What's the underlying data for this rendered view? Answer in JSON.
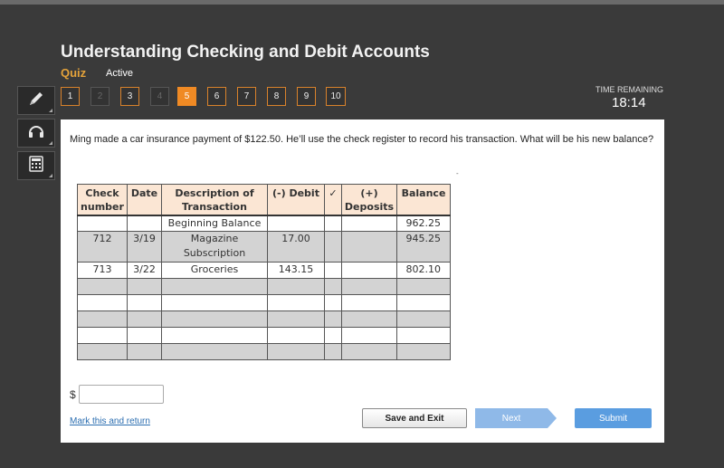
{
  "header": {
    "title": "Understanding Checking and Debit Accounts",
    "section": "Quiz",
    "status": "Active"
  },
  "tools": [
    {
      "name": "pencil-icon"
    },
    {
      "name": "headphones-icon"
    },
    {
      "name": "calculator-icon"
    }
  ],
  "question_nav": {
    "items": [
      "1",
      "2",
      "3",
      "4",
      "5",
      "6",
      "7",
      "8",
      "9",
      "10"
    ],
    "current": "5",
    "disabled": [
      "2",
      "4"
    ]
  },
  "timer": {
    "label": "TIME REMAINING",
    "value": "18:14"
  },
  "question": {
    "text": "Ming made a car insurance payment of $122.50. He’ll use the check register to record his  transaction. What will be his new balance?",
    "mark": "-"
  },
  "register": {
    "headers": [
      "Check number",
      "Date",
      "Description of Transaction",
      "(-) Debit",
      "✓",
      "(+) Deposits",
      "Balance"
    ],
    "rows": [
      [
        "",
        "",
        "Beginning Balance",
        "",
        "",
        "",
        "962.25"
      ],
      [
        "712",
        "3/19",
        "Magazine Subscription",
        "17.00",
        "",
        "",
        "945.25"
      ],
      [
        "713",
        "3/22",
        "Groceries",
        "143.15",
        "",
        "",
        "802.10"
      ],
      [
        "",
        "",
        "",
        "",
        "",
        "",
        ""
      ],
      [
        "",
        "",
        "",
        "",
        "",
        "",
        ""
      ],
      [
        "",
        "",
        "",
        "",
        "",
        "",
        ""
      ],
      [
        "",
        "",
        "",
        "",
        "",
        "",
        ""
      ],
      [
        "",
        "",
        "",
        "",
        "",
        "",
        ""
      ]
    ]
  },
  "answer": {
    "currency": "$",
    "value": ""
  },
  "footer": {
    "mark_link": "Mark this and return",
    "save": "Save and Exit",
    "next": "Next",
    "submit": "Submit"
  },
  "colors": {
    "accent": "#f08a24",
    "header_fill": "#fbe6d4",
    "shade": "#d3d3d3",
    "submit": "#5a9de0",
    "next": "#8fb9e8"
  }
}
